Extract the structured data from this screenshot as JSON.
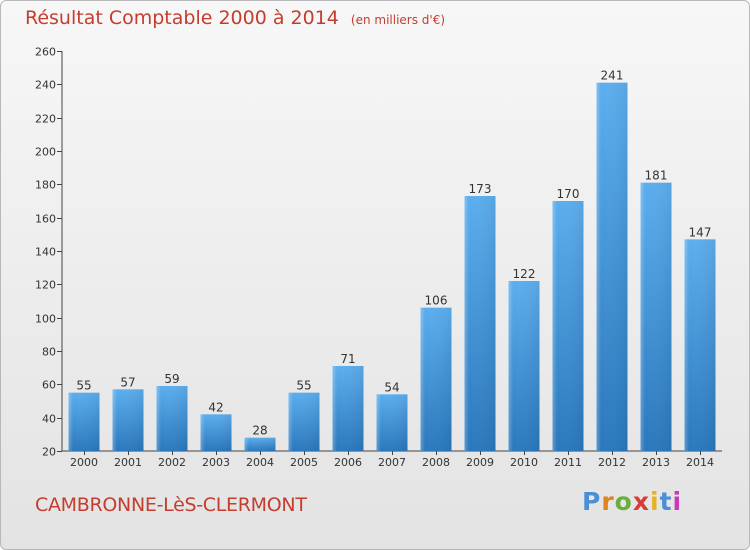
{
  "title": "Résultat Comptable 2000 à 2014",
  "subtitle": "(en milliers d'€)",
  "commune": "CAMBRONNE-LèS-CLERMONT",
  "brand": {
    "text": "Proxiti",
    "letter_colors": [
      "#4a8fd6",
      "#e0821e",
      "#6cae3a",
      "#d93a3a",
      "#e6b21e",
      "#4a8fd6",
      "#c83ab8"
    ]
  },
  "colors": {
    "bar": "#4a9ee2",
    "title": "#c43d2e",
    "axis": "#444444"
  },
  "chart_data": {
    "type": "bar",
    "categories": [
      "2000",
      "2001",
      "2002",
      "2003",
      "2004",
      "2005",
      "2006",
      "2007",
      "2008",
      "2009",
      "2010",
      "2011",
      "2012",
      "2013",
      "2014"
    ],
    "values": [
      55,
      57,
      59,
      42,
      28,
      55,
      71,
      54,
      106,
      173,
      122,
      170,
      241,
      181,
      147
    ],
    "ylim": [
      20,
      260
    ],
    "yticks": [
      20,
      40,
      60,
      80,
      100,
      120,
      140,
      160,
      180,
      200,
      220,
      240,
      260
    ],
    "title": "Résultat Comptable 2000 à 2014",
    "xlabel": "",
    "ylabel": "",
    "grid": false,
    "data_labels": true
  }
}
